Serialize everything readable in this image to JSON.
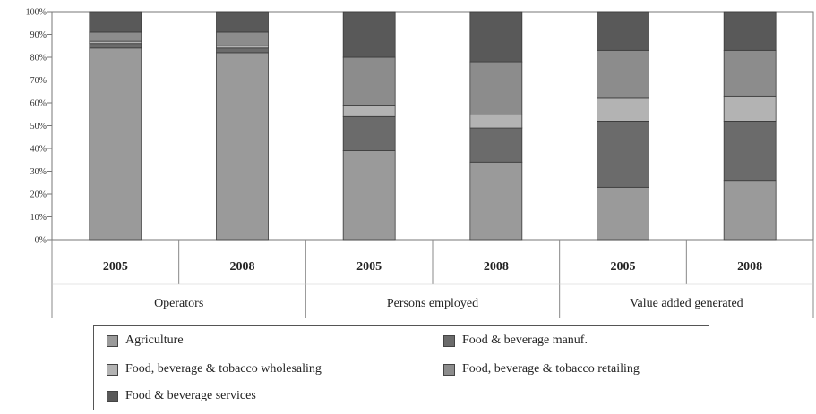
{
  "chart_data": {
    "type": "bar",
    "stacked": true,
    "percent": true,
    "ylim": [
      0,
      100
    ],
    "yticks": [
      "0%",
      "10%",
      "20%",
      "30%",
      "40%",
      "50%",
      "60%",
      "70%",
      "80%",
      "90%",
      "100%"
    ],
    "groups": [
      "Operators",
      "Persons employed",
      "Value added generated"
    ],
    "categories": [
      "2005",
      "2008",
      "2005",
      "2008",
      "2005",
      "2008"
    ],
    "series": [
      {
        "name": "Agriculture",
        "color": "#9a9a9a",
        "values": [
          84,
          82,
          39,
          34,
          23,
          26
        ]
      },
      {
        "name": "Food & beverage manuf.",
        "color": "#6b6b6b",
        "values": [
          2,
          2,
          15,
          15,
          29,
          26
        ]
      },
      {
        "name": "Food, beverage & tobacco wholesaling",
        "color": "#b3b3b3",
        "values": [
          1,
          1,
          5,
          6,
          10,
          11
        ]
      },
      {
        "name": "Food, beverage & tobacco retailing",
        "color": "#8c8c8c",
        "values": [
          4,
          6,
          21,
          23,
          21,
          20
        ]
      },
      {
        "name": "Food & beverage services",
        "color": "#595959",
        "values": [
          9,
          9,
          20,
          22,
          17,
          17
        ]
      }
    ],
    "legend_position": "bottom",
    "grid": false
  }
}
